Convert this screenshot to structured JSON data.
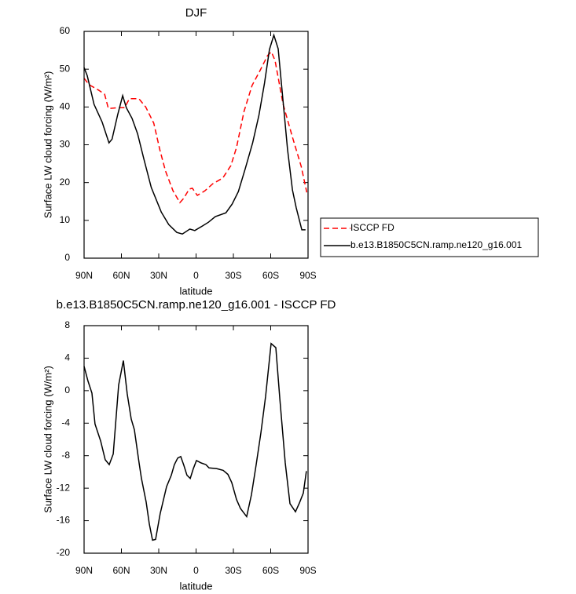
{
  "chart_data": [
    {
      "type": "line",
      "title": "DJF",
      "xlabel": "latitude",
      "ylabel": "Surface LW cloud forcing (W/m²)",
      "xlim": [
        90,
        -90
      ],
      "ylim": [
        0,
        60
      ],
      "xticks": [
        {
          "value": 90,
          "label": "90N"
        },
        {
          "value": 60,
          "label": "60N"
        },
        {
          "value": 30,
          "label": "30N"
        },
        0,
        {
          "value": -30,
          "label": "30S"
        },
        {
          "value": -60,
          "label": "60S"
        },
        {
          "value": -90,
          "label": "90S"
        }
      ],
      "yticks": [
        0,
        10,
        20,
        30,
        40,
        50,
        60
      ],
      "legend": "right",
      "series": [
        {
          "name": "ISCCP FD",
          "color": "#ff0000",
          "line_style": "dashed",
          "x": [
            90,
            86,
            78.5,
            73.5,
            70.5,
            63,
            57.5,
            53.5,
            46,
            40.5,
            34,
            29,
            24.5,
            18.5,
            13,
            10,
            5.5,
            3,
            -1,
            -7,
            -13.5,
            -21.5,
            -28,
            -32.5,
            -38.5,
            -45,
            -51,
            -57.5,
            -60.5,
            -63.5,
            -70,
            -77.5,
            -84.5,
            -89
          ],
          "values": [
            47.6,
            45.9,
            44.5,
            43.4,
            39.6,
            39.8,
            39.8,
            42.2,
            42.2,
            40,
            35.7,
            28.5,
            23,
            17.8,
            14.7,
            15.8,
            18.3,
            18.5,
            16.6,
            17.8,
            19.7,
            21.2,
            24.5,
            29.3,
            38.8,
            45.7,
            49.4,
            53.6,
            54.6,
            52.3,
            40.7,
            32,
            24.3,
            17.4
          ]
        },
        {
          "name": "b.e13.B1850C5CN.ramp.ne120_g16.001",
          "color": "#000000",
          "line_style": "solid",
          "x": [
            90,
            87.5,
            82,
            75.5,
            70,
            67.5,
            63,
            59,
            56,
            51.5,
            47,
            42,
            36,
            28,
            22,
            15.5,
            11,
            5,
            1,
            -5,
            -10,
            -15.5,
            -24,
            -29,
            -34,
            -39.5,
            -45.5,
            -50.5,
            -55,
            -59,
            -62.5,
            -66,
            -70.5,
            -73.5,
            -77.5,
            -80.5,
            -85,
            -88
          ],
          "values": [
            50.4,
            48.3,
            40.7,
            36,
            30.5,
            31.5,
            38,
            43,
            39.8,
            37,
            32.9,
            26.3,
            18.7,
            12.2,
            8.9,
            6.8,
            6.4,
            7.7,
            7.3,
            8.5,
            9.5,
            11,
            12,
            14.3,
            17.6,
            23.6,
            30.5,
            37.8,
            46.3,
            55.2,
            59,
            55.4,
            39.6,
            28.8,
            18,
            13.3,
            7.5,
            7.5
          ]
        }
      ]
    },
    {
      "type": "line",
      "title": "b.e13.B1850C5CN.ramp.ne120_g16.001 - ISCCP FD",
      "xlabel": "latitude",
      "ylabel": "Surface LW cloud forcing (W/m²)",
      "xlim": [
        90,
        -90
      ],
      "ylim": [
        -20,
        8
      ],
      "xticks": [
        {
          "value": 90,
          "label": "90N"
        },
        {
          "value": 60,
          "label": "60N"
        },
        {
          "value": 30,
          "label": "30N"
        },
        0,
        {
          "value": -30,
          "label": "30S"
        },
        {
          "value": -60,
          "label": "60S"
        },
        {
          "value": -90,
          "label": "90S"
        }
      ],
      "yticks": [
        -20,
        -16,
        -12,
        -8,
        -4,
        0,
        4,
        8
      ],
      "color": "#000000",
      "x": [
        90,
        86.9,
        83.7,
        81.2,
        76.7,
        73,
        69.8,
        66.6,
        62.2,
        58.4,
        55.3,
        52.1,
        49.6,
        45.8,
        43.9,
        40.1,
        37.6,
        35,
        32.5,
        28.8,
        23.7,
        19.9,
        17.4,
        14.8,
        12.3,
        9.8,
        7.3,
        4.7,
        2.2,
        -0.3,
        -4.1,
        -7.9,
        -10.4,
        -16.7,
        -21.8,
        -25.6,
        -28.7,
        -32.5,
        -35.7,
        -40.7,
        -44.5,
        -48.3,
        -52.1,
        -55.9,
        -60.3,
        -64.1,
        -67.3,
        -71.7,
        -75.5,
        -79.9,
        -83.1,
        -86.2,
        -88.7
      ],
      "values": [
        3,
        1.2,
        -0.3,
        -4.1,
        -6.2,
        -8.5,
        -9.1,
        -7.8,
        0.7,
        3.7,
        -0.4,
        -3.5,
        -4.8,
        -8.9,
        -10.8,
        -13.7,
        -16.4,
        -18.4,
        -18.3,
        -15.1,
        -11.8,
        -10.4,
        -9.1,
        -8.3,
        -8.1,
        -9.2,
        -10.4,
        -10.8,
        -9.6,
        -8.6,
        -8.9,
        -9.1,
        -9.5,
        -9.6,
        -9.8,
        -10.3,
        -11.3,
        -13.4,
        -14.5,
        -15.5,
        -12.8,
        -9.1,
        -5.2,
        -0.7,
        5.8,
        5.3,
        -1,
        -8.9,
        -13.9,
        -14.9,
        -13.8,
        -12.6,
        -9.9
      ]
    }
  ]
}
